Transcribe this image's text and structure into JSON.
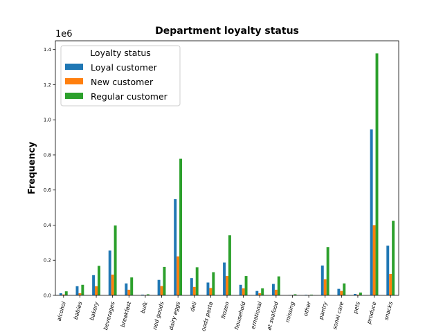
{
  "chart_data": {
    "type": "bar",
    "title": "Department loyalty status",
    "xlabel": "",
    "ylabel": "Frequency",
    "offset_text": "1e6",
    "ylim": [
      0,
      1.45
    ],
    "yticks": [
      0.0,
      0.2,
      0.4,
      0.6,
      0.8,
      1.0,
      1.2,
      1.4
    ],
    "ytick_labels": [
      "0.0",
      "0.2",
      "0.4",
      "0.6",
      "0.8",
      "1.0",
      "1.2",
      "1.4"
    ],
    "grid": false,
    "legend": {
      "title": "Loyalty status",
      "placement": "top-left"
    },
    "categories": [
      "alcohol",
      "babies",
      "bakery",
      "beverages",
      "breakfast",
      "bulk",
      "canned goods",
      "dairy eggs",
      "deli",
      "dry goods pasta",
      "frozen",
      "household",
      "international",
      "meat seafood",
      "missing",
      "other",
      "pantry",
      "personal care",
      "pets",
      "produce",
      "snacks"
    ],
    "category_labels": [
      "alcohol",
      "babies",
      "bakery",
      "beverages",
      "breakfast",
      "bulk",
      "ned goods",
      "dairy eggs",
      "deli",
      "oods pasta",
      "frozen",
      "household",
      "ernational",
      "at seafood",
      "missing",
      "other",
      "pantry",
      "sonal care",
      "pets",
      "produce",
      "snacks"
    ],
    "series": [
      {
        "name": "Loyal customer",
        "color": "#1f77b4",
        "values": [
          0.012,
          0.052,
          0.115,
          0.255,
          0.068,
          0.004,
          0.088,
          0.548,
          0.098,
          0.073,
          0.187,
          0.06,
          0.025,
          0.065,
          0.002,
          0.003,
          0.17,
          0.037,
          0.008,
          0.945,
          0.283
        ]
      },
      {
        "name": "New customer",
        "color": "#ff7f0e",
        "values": [
          0.005,
          0.012,
          0.052,
          0.118,
          0.032,
          0.001,
          0.053,
          0.222,
          0.048,
          0.042,
          0.11,
          0.04,
          0.012,
          0.032,
          0.001,
          0.001,
          0.092,
          0.025,
          0.004,
          0.4,
          0.122
        ]
      },
      {
        "name": "Regular customer",
        "color": "#2ca02c",
        "values": [
          0.023,
          0.06,
          0.168,
          0.398,
          0.102,
          0.006,
          0.162,
          0.778,
          0.16,
          0.132,
          0.342,
          0.11,
          0.04,
          0.108,
          0.006,
          0.004,
          0.275,
          0.068,
          0.016,
          1.378,
          0.425
        ]
      }
    ]
  }
}
